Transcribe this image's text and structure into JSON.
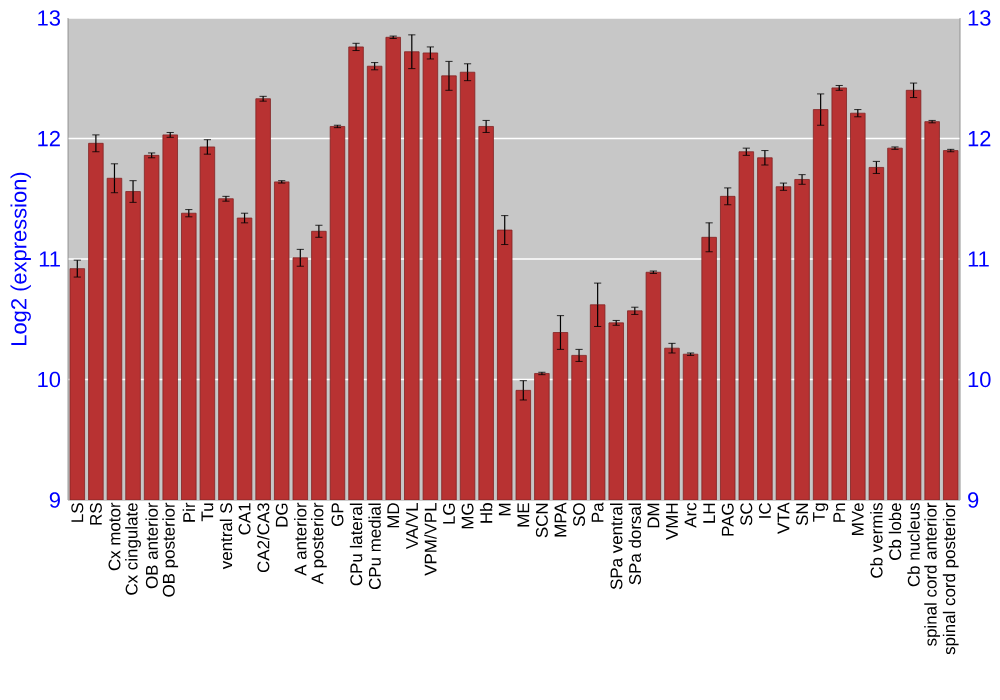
{
  "chart_data": {
    "type": "bar",
    "ylabel": "Log2 (expression)",
    "categories": [
      "LS",
      "RS",
      "Cx motor",
      "Cx cingulate",
      "OB anterior",
      "OB posterior",
      "Pir",
      "Tu",
      "ventral S",
      "CA1",
      "CA2/CA3",
      "DG",
      "A anterior",
      "A posterior",
      "GP",
      "CPu lateral",
      "CPu medial",
      "MD",
      "VA/VL",
      "VPM/VPL",
      "LG",
      "MG",
      "Hb",
      "M",
      "ME",
      "SCN",
      "MPA",
      "SO",
      "Pa",
      "SPa ventral",
      "SPa dorsal",
      "DM",
      "VMH",
      "Arc",
      "LH",
      "PAG",
      "SC",
      "IC",
      "VTA",
      "SN",
      "Tg",
      "Pn",
      "MVe",
      "Cb vermis",
      "Cb lobe",
      "Cb nucleus",
      "spinal cord anterior",
      "spinal cord posterior"
    ],
    "values": [
      10.92,
      11.96,
      11.67,
      11.56,
      11.86,
      12.03,
      11.38,
      11.93,
      11.5,
      11.34,
      12.33,
      11.64,
      11.01,
      11.23,
      12.1,
      12.76,
      12.6,
      12.84,
      12.72,
      12.71,
      12.52,
      12.55,
      12.1,
      11.24,
      9.91,
      10.05,
      10.39,
      10.2,
      10.62,
      10.47,
      10.57,
      10.89,
      10.26,
      10.21,
      11.18,
      11.52,
      11.89,
      11.84,
      11.6,
      11.66,
      12.24,
      12.42,
      12.21,
      11.76,
      11.92,
      12.4,
      12.14,
      11.9
    ],
    "errors": [
      0.07,
      0.07,
      0.12,
      0.09,
      0.02,
      0.02,
      0.03,
      0.06,
      0.02,
      0.04,
      0.02,
      0.01,
      0.07,
      0.05,
      0.01,
      0.03,
      0.03,
      0.01,
      0.14,
      0.05,
      0.12,
      0.07,
      0.05,
      0.12,
      0.08,
      0.01,
      0.14,
      0.05,
      0.18,
      0.02,
      0.03,
      0.01,
      0.04,
      0.01,
      0.12,
      0.07,
      0.03,
      0.06,
      0.03,
      0.04,
      0.13,
      0.02,
      0.03,
      0.05,
      0.01,
      0.06,
      0.01,
      0.01
    ],
    "color": "#b83232",
    "ylim": [
      9,
      13
    ],
    "yticks": [
      9,
      10,
      11,
      12,
      13
    ],
    "y2lim": [
      9,
      13
    ],
    "y2ticks": [
      9,
      10,
      11,
      12,
      13
    ],
    "grid": "y"
  }
}
